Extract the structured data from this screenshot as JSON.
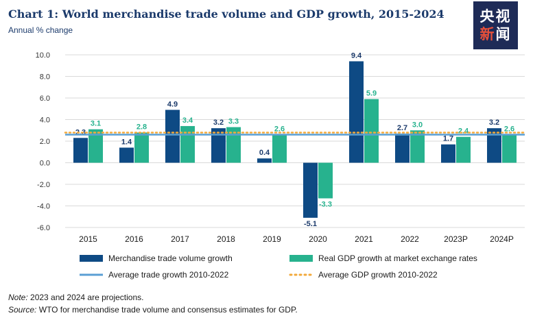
{
  "title": "Chart 1: World merchandise trade volume and GDP growth, 2015-2024",
  "subtitle": "Annual % change",
  "logo": {
    "line1": "央视",
    "line2a": "新",
    "line2b": "闻"
  },
  "note": {
    "label": "Note:",
    "text": " 2023 and 2024 are projections."
  },
  "source": {
    "label": "Source:",
    "text": " WTO for merchandise trade volume and consensus estimates for GDP."
  },
  "colors": {
    "trade": "#0e4a84",
    "gdp": "#27b28e",
    "avg_trade": "#5a9fd4",
    "avg_gdp": "#f2a93b",
    "grid": "#d9d9d9",
    "label_trade": "#1b3a6b",
    "label_gdp": "#27b28e"
  },
  "chart_data": {
    "type": "bar",
    "categories": [
      "2015",
      "2016",
      "2017",
      "2018",
      "2019",
      "2020",
      "2021",
      "2022",
      "2023P",
      "2024P"
    ],
    "series": [
      {
        "name": "Merchandise trade volume growth",
        "values": [
          2.3,
          1.4,
          4.9,
          3.2,
          0.4,
          -5.1,
          9.4,
          2.7,
          1.7,
          3.2
        ]
      },
      {
        "name": "Real GDP growth at market exchange rates",
        "values": [
          3.1,
          2.8,
          3.4,
          3.3,
          2.6,
          -3.3,
          5.9,
          3.0,
          2.4,
          2.6
        ]
      }
    ],
    "reference_lines": [
      {
        "name": "Average trade growth 2010-2022",
        "style": "solid"
      },
      {
        "name": "Average GDP growth 2010-2022",
        "style": "dotted"
      }
    ],
    "ylim": [
      -6.0,
      10.0
    ],
    "yticks": [
      "10.0",
      "8.0",
      "6.0",
      "4.0",
      "2.0",
      "0.0",
      "-2.0",
      "-4.0",
      "-6.0"
    ],
    "ytick_values": [
      10,
      8,
      6,
      4,
      2,
      0,
      -2,
      -4,
      -6
    ],
    "grid": true,
    "legend_position": "bottom",
    "data_labels": true
  }
}
